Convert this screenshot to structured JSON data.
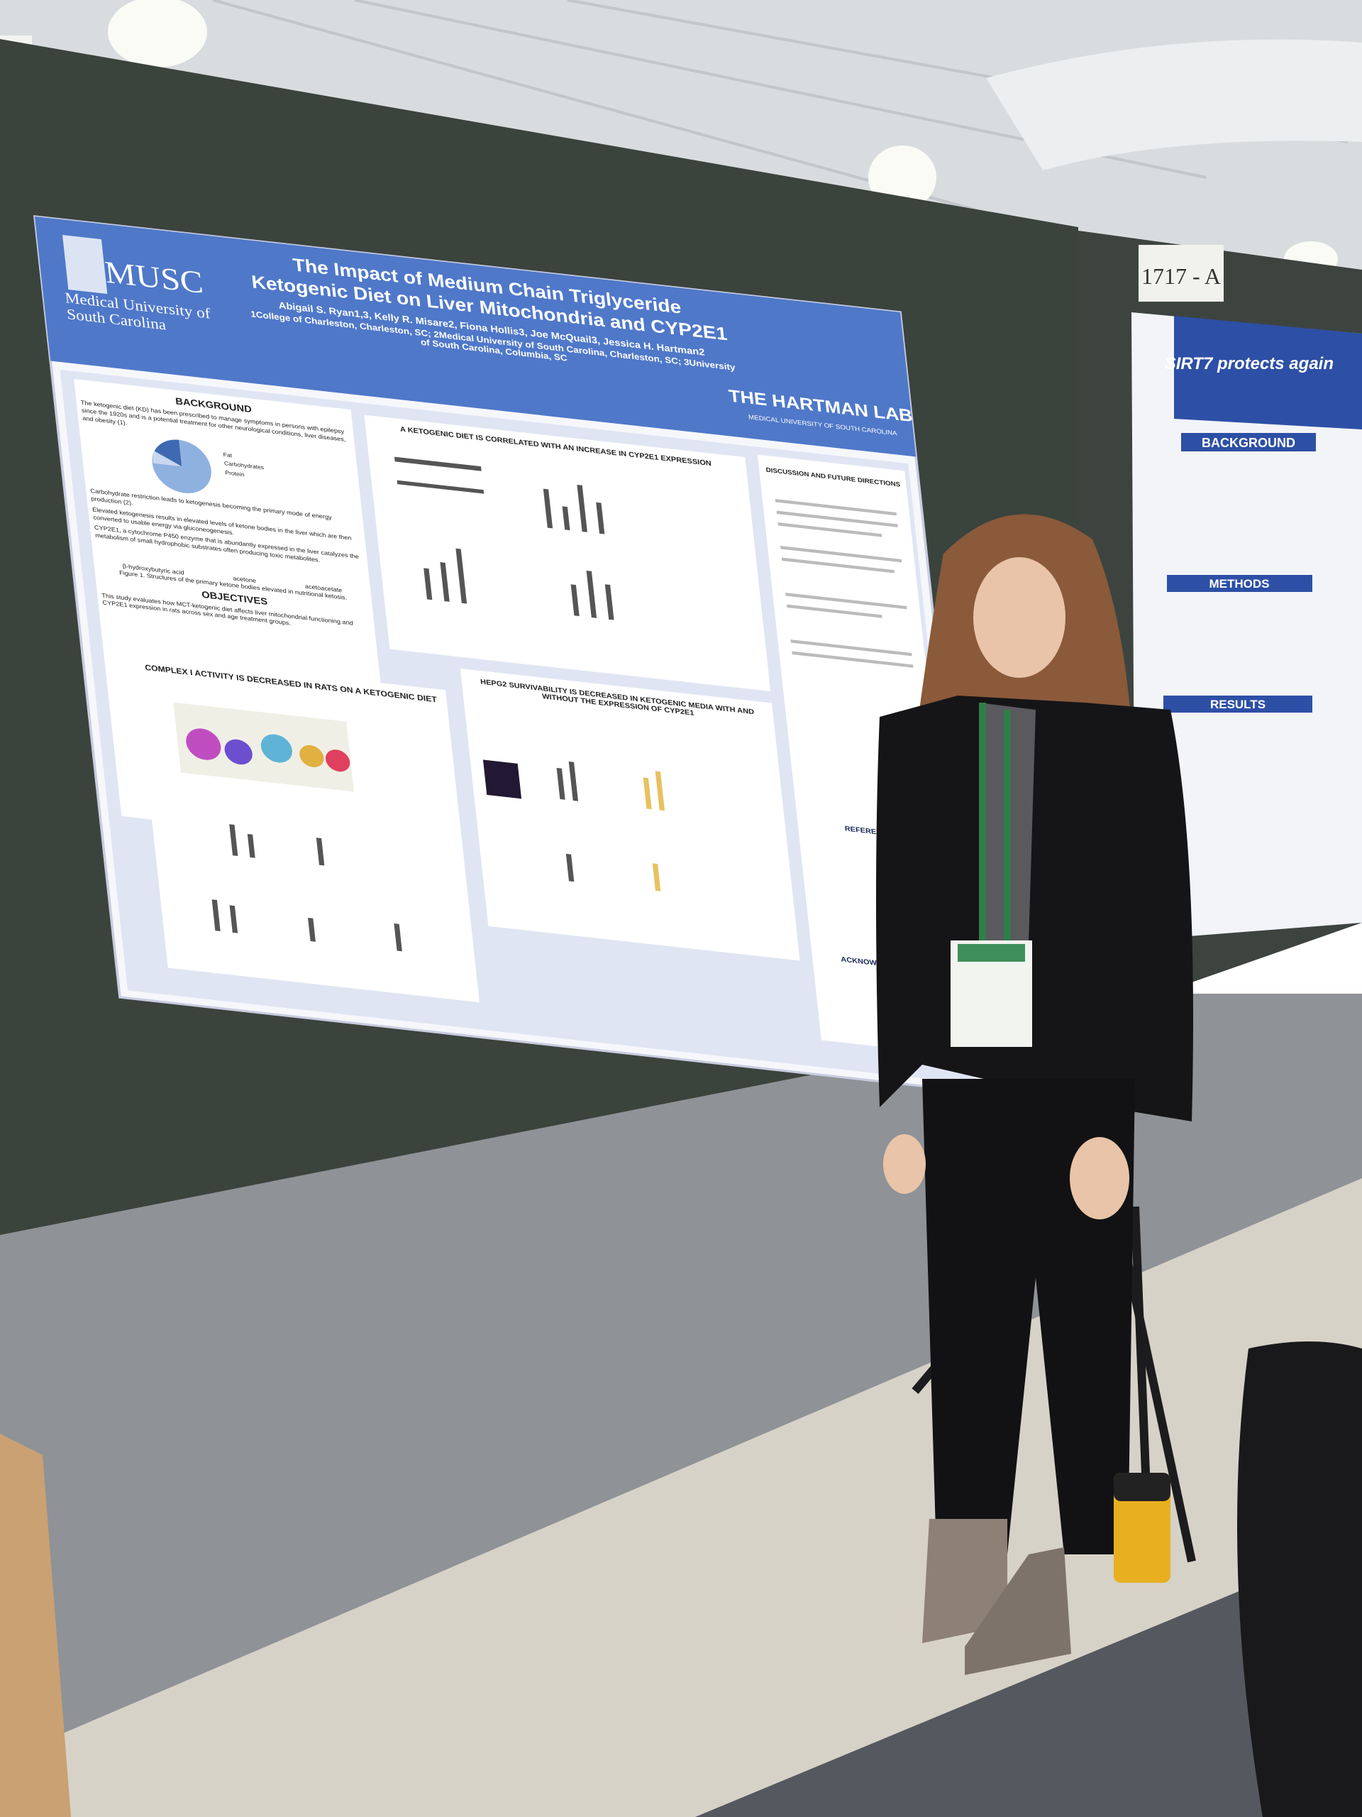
{
  "booth_number": "1717 - A",
  "poster": {
    "logo_abbr": "MUSC",
    "logo_name": "Medical University of South Carolina",
    "title": "The Impact of Medium Chain Triglyceride Ketogenic Diet on Liver Mitochondria and CYP2E1",
    "authors": "Abigail S. Ryan1,3, Kelly R. Misare2, Fiona Hollis3, Joe McQuail3, Jessica H. Hartman2",
    "affiliations": "1College of Charleston, Charleston, SC; 2Medical University of South Carolina, Charleston, SC; 3University of South Carolina, Columbia, SC",
    "lab": "THE HARTMAN LAB",
    "lab_sub": "MEDICAL UNIVERSITY OF SOUTH CAROLINA",
    "background": {
      "heading": "BACKGROUND",
      "bullets": [
        "The ketogenic diet (KD) has been prescribed to manage symptoms in persons with epilepsy since the 1920s and is a potential treatment for other neurological conditions, liver diseases, and obesity (1).",
        "Carbohydrate restriction leads to ketogenesis becoming the primary mode of energy production (2).",
        "Elevated ketogenesis results in elevated levels of ketone bodies in the liver which are then converted to usable energy via gluconeogenesis.",
        "CYP2E1, a cytochrome P450 enzyme that is abundantly expressed in the liver catalyzes the metabolism of small hydrophobic substrates often producing toxic metabolites."
      ],
      "pie_legend": [
        "Fat",
        "Carbohydrates",
        "Protein"
      ],
      "molecules": [
        "β-hydroxybutyric acid",
        "acetone",
        "acetoacetate"
      ],
      "figure_caption": "Figure 1. Structures of the primary ketone bodies elevated in nutritional ketosis."
    },
    "objectives": {
      "heading": "OBJECTIVES",
      "text": "This study evaluates how MCT-ketogenic diet affects liver mitochondrial functioning and CYP2E1 expression in rats across sex and age treatment groups."
    },
    "cyp2e1_heading": "A KETOGENIC DIET IS CORRELATED WITH AN INCREASE IN CYP2E1 EXPRESSION",
    "complex_heading": "COMPLEX I ACTIVITY IS DECREASED IN RATS ON A KETOGENIC DIET",
    "hepg2_heading": "HEPG2 SURVIVABILITY IS DECREASED IN KETOGENIC MEDIA WITH AND WITHOUT THE EXPRESSION OF CYP2E1",
    "discussion_heading": "DISCUSSION AND FUTURE DIRECTIONS",
    "references_heading": "REFERENCES",
    "acknowledgements_heading": "ACKNOWLEDGEMENTS"
  },
  "neighbor_poster": {
    "title": "SIRT7 protects again",
    "headings": [
      "BACKGROUND",
      "METHODS",
      "RESULTS"
    ]
  }
}
